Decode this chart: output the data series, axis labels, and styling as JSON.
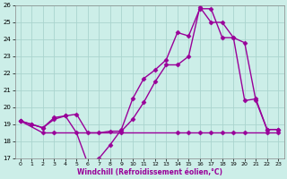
{
  "xlabel": "Windchill (Refroidissement éolien,°C)",
  "background_color": "#cceee8",
  "grid_color": "#aad4ce",
  "line_color": "#990099",
  "ylim": [
    17,
    26
  ],
  "xlim": [
    -0.5,
    23.5
  ],
  "yticks": [
    17,
    18,
    19,
    20,
    21,
    22,
    23,
    24,
    25,
    26
  ],
  "xticks": [
    0,
    1,
    2,
    3,
    4,
    5,
    6,
    7,
    8,
    9,
    10,
    11,
    12,
    13,
    14,
    15,
    16,
    17,
    18,
    19,
    20,
    21,
    22,
    23
  ],
  "series1_x": [
    0,
    1,
    2,
    3,
    4,
    5,
    6,
    7,
    8,
    9,
    10,
    11,
    12,
    13,
    14,
    15,
    16,
    17,
    18,
    19,
    20,
    21,
    22,
    23
  ],
  "series1_y": [
    19.2,
    19.0,
    18.8,
    19.4,
    19.5,
    18.5,
    16.7,
    17.0,
    17.8,
    18.7,
    20.5,
    21.7,
    22.2,
    22.8,
    24.4,
    24.2,
    25.8,
    25.8,
    24.1,
    24.1,
    20.4,
    20.5,
    18.7,
    18.7
  ],
  "series2_x": [
    0,
    1,
    2,
    3,
    4,
    5,
    6,
    7,
    8,
    9,
    10,
    11,
    12,
    13,
    14,
    15,
    16,
    17,
    18,
    19,
    20,
    21,
    22,
    23
  ],
  "series2_y": [
    19.2,
    19.0,
    18.8,
    19.3,
    19.5,
    19.6,
    18.5,
    18.5,
    18.6,
    18.6,
    19.3,
    20.3,
    21.5,
    22.5,
    22.5,
    23.0,
    25.9,
    25.0,
    25.0,
    24.1,
    23.8,
    20.4,
    18.7,
    18.7
  ],
  "series3_x": [
    0,
    2,
    3,
    9,
    14,
    15,
    16,
    17,
    18,
    19,
    20,
    22,
    23
  ],
  "series3_y": [
    19.2,
    18.5,
    18.5,
    18.5,
    18.5,
    18.5,
    18.5,
    18.5,
    18.5,
    18.5,
    18.5,
    18.5,
    18.5
  ],
  "markersize": 2.5,
  "linewidth": 1.0
}
